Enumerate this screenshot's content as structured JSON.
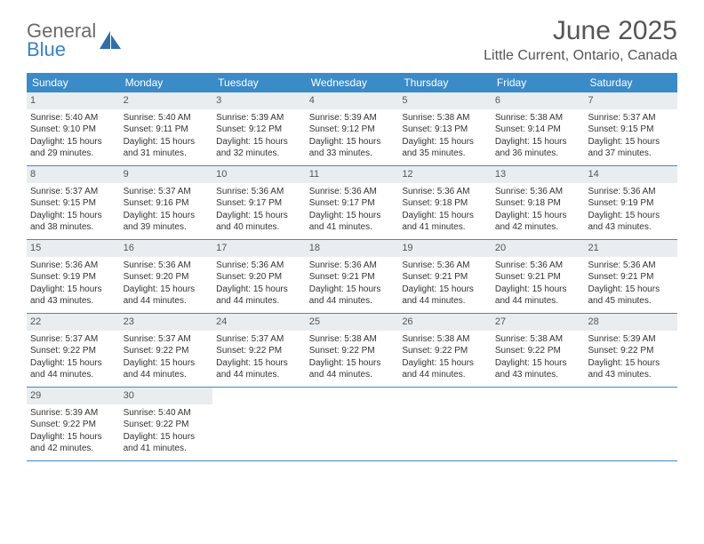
{
  "logo": {
    "general": "General",
    "blue": "Blue"
  },
  "title": "June 2025",
  "location": "Little Current, Ontario, Canada",
  "colors": {
    "header_bg": "#3b8bc9",
    "daynum_bg": "#e9edf0",
    "rule": "#3b8bc9",
    "text": "#333333",
    "logo_gray": "#6b6b6b",
    "logo_blue": "#3b82c4"
  },
  "weekdays": [
    "Sunday",
    "Monday",
    "Tuesday",
    "Wednesday",
    "Thursday",
    "Friday",
    "Saturday"
  ],
  "labels": {
    "sunrise_prefix": "Sunrise: ",
    "sunset_prefix": "Sunset: ",
    "daylight_prefix": "Daylight: "
  },
  "days": [
    {
      "n": 1,
      "sunrise": "5:40 AM",
      "sunset": "9:10 PM",
      "daylight": "15 hours and 29 minutes."
    },
    {
      "n": 2,
      "sunrise": "5:40 AM",
      "sunset": "9:11 PM",
      "daylight": "15 hours and 31 minutes."
    },
    {
      "n": 3,
      "sunrise": "5:39 AM",
      "sunset": "9:12 PM",
      "daylight": "15 hours and 32 minutes."
    },
    {
      "n": 4,
      "sunrise": "5:39 AM",
      "sunset": "9:12 PM",
      "daylight": "15 hours and 33 minutes."
    },
    {
      "n": 5,
      "sunrise": "5:38 AM",
      "sunset": "9:13 PM",
      "daylight": "15 hours and 35 minutes."
    },
    {
      "n": 6,
      "sunrise": "5:38 AM",
      "sunset": "9:14 PM",
      "daylight": "15 hours and 36 minutes."
    },
    {
      "n": 7,
      "sunrise": "5:37 AM",
      "sunset": "9:15 PM",
      "daylight": "15 hours and 37 minutes."
    },
    {
      "n": 8,
      "sunrise": "5:37 AM",
      "sunset": "9:15 PM",
      "daylight": "15 hours and 38 minutes."
    },
    {
      "n": 9,
      "sunrise": "5:37 AM",
      "sunset": "9:16 PM",
      "daylight": "15 hours and 39 minutes."
    },
    {
      "n": 10,
      "sunrise": "5:36 AM",
      "sunset": "9:17 PM",
      "daylight": "15 hours and 40 minutes."
    },
    {
      "n": 11,
      "sunrise": "5:36 AM",
      "sunset": "9:17 PM",
      "daylight": "15 hours and 41 minutes."
    },
    {
      "n": 12,
      "sunrise": "5:36 AM",
      "sunset": "9:18 PM",
      "daylight": "15 hours and 41 minutes."
    },
    {
      "n": 13,
      "sunrise": "5:36 AM",
      "sunset": "9:18 PM",
      "daylight": "15 hours and 42 minutes."
    },
    {
      "n": 14,
      "sunrise": "5:36 AM",
      "sunset": "9:19 PM",
      "daylight": "15 hours and 43 minutes."
    },
    {
      "n": 15,
      "sunrise": "5:36 AM",
      "sunset": "9:19 PM",
      "daylight": "15 hours and 43 minutes."
    },
    {
      "n": 16,
      "sunrise": "5:36 AM",
      "sunset": "9:20 PM",
      "daylight": "15 hours and 44 minutes."
    },
    {
      "n": 17,
      "sunrise": "5:36 AM",
      "sunset": "9:20 PM",
      "daylight": "15 hours and 44 minutes."
    },
    {
      "n": 18,
      "sunrise": "5:36 AM",
      "sunset": "9:21 PM",
      "daylight": "15 hours and 44 minutes."
    },
    {
      "n": 19,
      "sunrise": "5:36 AM",
      "sunset": "9:21 PM",
      "daylight": "15 hours and 44 minutes."
    },
    {
      "n": 20,
      "sunrise": "5:36 AM",
      "sunset": "9:21 PM",
      "daylight": "15 hours and 44 minutes."
    },
    {
      "n": 21,
      "sunrise": "5:36 AM",
      "sunset": "9:21 PM",
      "daylight": "15 hours and 45 minutes."
    },
    {
      "n": 22,
      "sunrise": "5:37 AM",
      "sunset": "9:22 PM",
      "daylight": "15 hours and 44 minutes."
    },
    {
      "n": 23,
      "sunrise": "5:37 AM",
      "sunset": "9:22 PM",
      "daylight": "15 hours and 44 minutes."
    },
    {
      "n": 24,
      "sunrise": "5:37 AM",
      "sunset": "9:22 PM",
      "daylight": "15 hours and 44 minutes."
    },
    {
      "n": 25,
      "sunrise": "5:38 AM",
      "sunset": "9:22 PM",
      "daylight": "15 hours and 44 minutes."
    },
    {
      "n": 26,
      "sunrise": "5:38 AM",
      "sunset": "9:22 PM",
      "daylight": "15 hours and 44 minutes."
    },
    {
      "n": 27,
      "sunrise": "5:38 AM",
      "sunset": "9:22 PM",
      "daylight": "15 hours and 43 minutes."
    },
    {
      "n": 28,
      "sunrise": "5:39 AM",
      "sunset": "9:22 PM",
      "daylight": "15 hours and 43 minutes."
    },
    {
      "n": 29,
      "sunrise": "5:39 AM",
      "sunset": "9:22 PM",
      "daylight": "15 hours and 42 minutes."
    },
    {
      "n": 30,
      "sunrise": "5:40 AM",
      "sunset": "9:22 PM",
      "daylight": "15 hours and 41 minutes."
    }
  ],
  "layout": {
    "first_weekday_index": 0,
    "rows": 5,
    "cols": 7
  }
}
